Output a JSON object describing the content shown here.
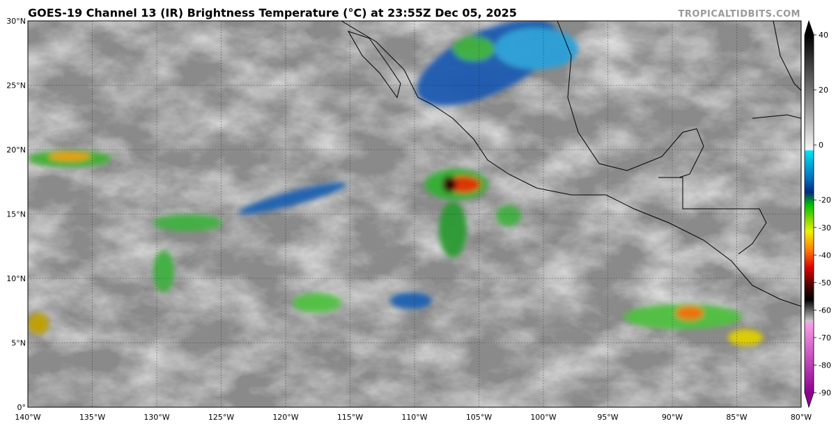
{
  "map": {
    "title": "GOES-19 Channel 13 (IR) Brightness Temperature (°C) at 23:55Z Dec 05, 2025",
    "credit": "TROPICALTIDBITS.COM",
    "lat_labels": [
      "30°N",
      "25°N",
      "20°N",
      "15°N",
      "10°N",
      "5°N",
      "0°"
    ],
    "lon_labels": [
      "140°W",
      "135°W",
      "130°W",
      "125°W",
      "120°W",
      "115°W",
      "110°W",
      "105°W",
      "100°W",
      "95°W",
      "90°W",
      "85°W",
      "80°W"
    ],
    "colorbar": {
      "lim": [
        -90,
        40
      ],
      "ticks": [
        40,
        20,
        0,
        -20,
        -30,
        -40,
        -50,
        -60,
        -70,
        -80,
        -90
      ]
    }
  }
}
